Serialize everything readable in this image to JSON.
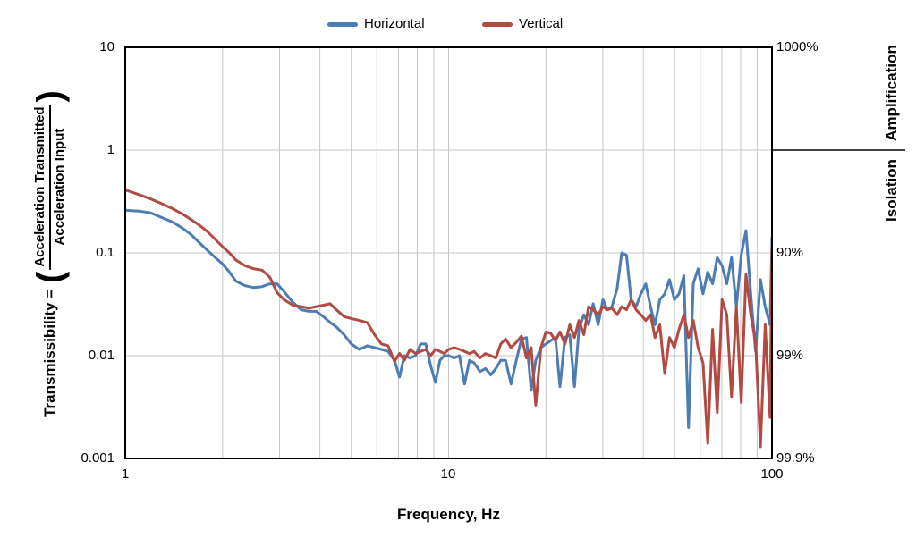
{
  "legend": {
    "items": [
      {
        "label": "Horizontal",
        "color": "#4d7cb2"
      },
      {
        "label": "Vertical",
        "color": "#b04a42"
      }
    ]
  },
  "axes": {
    "x": {
      "title": "Frequency, Hz",
      "ticks": [
        "1",
        "10",
        "100"
      ]
    },
    "y": {
      "lead": "Transmissibility =",
      "open_paren": "(",
      "numerator": "Acceleration Transmitted",
      "denominator": "Acceleration Input",
      "close_paren": ")",
      "ticks": [
        "10",
        "1",
        "0.1",
        "0.01",
        "0.001"
      ]
    }
  },
  "right_axis": {
    "labels": [
      {
        "text": "1000%",
        "value": 10
      },
      {
        "text": "90%",
        "value": 0.1
      },
      {
        "text": "99%",
        "value": 0.01
      },
      {
        "text": "99.9%",
        "value": 0.001
      }
    ],
    "amplification": "Amplification",
    "isolation": "Isolation",
    "divider_value": 1
  },
  "chart_data": {
    "type": "line",
    "title": "",
    "xlabel": "Frequency, Hz",
    "ylabel": "Transmissibility = (Acceleration Transmitted / Acceleration Input)",
    "x_scale": "log",
    "y_scale": "log",
    "xlim": [
      1,
      100
    ],
    "ylim": [
      0.001,
      10
    ],
    "grid": true,
    "grid_color": "#c6c6c6",
    "legend_position": "top",
    "x_gridlines": [
      2,
      3,
      4,
      5,
      6,
      7,
      8,
      9,
      10,
      20,
      30,
      40,
      50,
      60,
      70,
      80,
      90
    ],
    "y_gridlines": [
      1,
      0.1,
      0.01
    ],
    "x": [
      1.0,
      1.1,
      1.2,
      1.3,
      1.4,
      1.5,
      1.6,
      1.7,
      1.8,
      1.9,
      2.0,
      2.1,
      2.2,
      2.35,
      2.5,
      2.65,
      2.8,
      2.95,
      3.1,
      3.3,
      3.5,
      3.7,
      3.9,
      4.1,
      4.3,
      4.5,
      4.75,
      5.0,
      5.3,
      5.6,
      5.9,
      6.2,
      6.5,
      6.8,
      7.05,
      7.3,
      7.6,
      7.9,
      8.2,
      8.5,
      8.8,
      9.1,
      9.4,
      9.7,
      10.0,
      10.4,
      10.8,
      11.2,
      11.6,
      12.0,
      12.5,
      13.0,
      13.5,
      14.0,
      14.5,
      15.0,
      15.6,
      16.2,
      16.8,
      17.4,
      18.0,
      18.6,
      19.3,
      20.0,
      20.7,
      21.4,
      22.1,
      22.9,
      23.7,
      24.5,
      25.3,
      26.2,
      27.1,
      28.0,
      29.0,
      30.0,
      31.0,
      32.0,
      33.2,
      34.3,
      35.5,
      36.7,
      38.0,
      39.3,
      40.7,
      42.1,
      43.5,
      45.0,
      46.6,
      48.2,
      49.9,
      51.6,
      53.4,
      55.2,
      57.1,
      59.1,
      61.2,
      63.3,
      65.5,
      67.7,
      70.1,
      72.5,
      75.0,
      77.6,
      80.3,
      83.1,
      86.0,
      89.0,
      92.1,
      95.3,
      98.6,
      100.0
    ],
    "series": [
      {
        "name": "Horizontal",
        "color": "#4d7cb2",
        "values": [
          0.26,
          0.255,
          0.245,
          0.22,
          0.2,
          0.175,
          0.15,
          0.125,
          0.105,
          0.09,
          0.078,
          0.065,
          0.053,
          0.048,
          0.046,
          0.047,
          0.05,
          0.05,
          0.042,
          0.033,
          0.028,
          0.027,
          0.027,
          0.024,
          0.021,
          0.019,
          0.016,
          0.013,
          0.0115,
          0.0125,
          0.012,
          0.0115,
          0.011,
          0.009,
          0.0062,
          0.01,
          0.0095,
          0.01,
          0.013,
          0.013,
          0.008,
          0.0055,
          0.009,
          0.01,
          0.01,
          0.0095,
          0.01,
          0.0053,
          0.009,
          0.0085,
          0.007,
          0.0075,
          0.0065,
          0.0075,
          0.009,
          0.009,
          0.0053,
          0.009,
          0.0145,
          0.015,
          0.0046,
          0.009,
          0.012,
          0.013,
          0.014,
          0.015,
          0.005,
          0.015,
          0.016,
          0.005,
          0.018,
          0.025,
          0.02,
          0.032,
          0.02,
          0.035,
          0.028,
          0.03,
          0.045,
          0.1,
          0.095,
          0.035,
          0.03,
          0.04,
          0.05,
          0.03,
          0.02,
          0.035,
          0.04,
          0.055,
          0.035,
          0.04,
          0.06,
          0.002,
          0.05,
          0.07,
          0.04,
          0.065,
          0.05,
          0.09,
          0.075,
          0.05,
          0.09,
          0.03,
          0.095,
          0.165,
          0.04,
          0.011,
          0.055,
          0.03,
          0.02,
          0.14
        ]
      },
      {
        "name": "Vertical",
        "color": "#b04a42",
        "values": [
          0.41,
          0.37,
          0.335,
          0.3,
          0.27,
          0.24,
          0.21,
          0.185,
          0.16,
          0.135,
          0.115,
          0.1,
          0.085,
          0.075,
          0.07,
          0.068,
          0.058,
          0.041,
          0.035,
          0.031,
          0.03,
          0.029,
          0.03,
          0.031,
          0.032,
          0.028,
          0.024,
          0.023,
          0.022,
          0.021,
          0.016,
          0.013,
          0.0125,
          0.0088,
          0.0105,
          0.009,
          0.0115,
          0.0105,
          0.011,
          0.0115,
          0.01,
          0.0115,
          0.011,
          0.0105,
          0.0115,
          0.012,
          0.0115,
          0.011,
          0.0105,
          0.011,
          0.0095,
          0.0105,
          0.01,
          0.0095,
          0.013,
          0.0145,
          0.012,
          0.0135,
          0.0155,
          0.0095,
          0.012,
          0.0033,
          0.012,
          0.017,
          0.0165,
          0.014,
          0.017,
          0.013,
          0.02,
          0.015,
          0.022,
          0.016,
          0.03,
          0.028,
          0.025,
          0.03,
          0.028,
          0.029,
          0.025,
          0.03,
          0.028,
          0.035,
          0.028,
          0.025,
          0.022,
          0.025,
          0.015,
          0.02,
          0.0067,
          0.015,
          0.012,
          0.018,
          0.025,
          0.015,
          0.022,
          0.012,
          0.0085,
          0.0014,
          0.018,
          0.0028,
          0.035,
          0.025,
          0.004,
          0.03,
          0.0035,
          0.062,
          0.025,
          0.0135,
          0.0013,
          0.02,
          0.0025,
          0.11
        ]
      }
    ]
  }
}
